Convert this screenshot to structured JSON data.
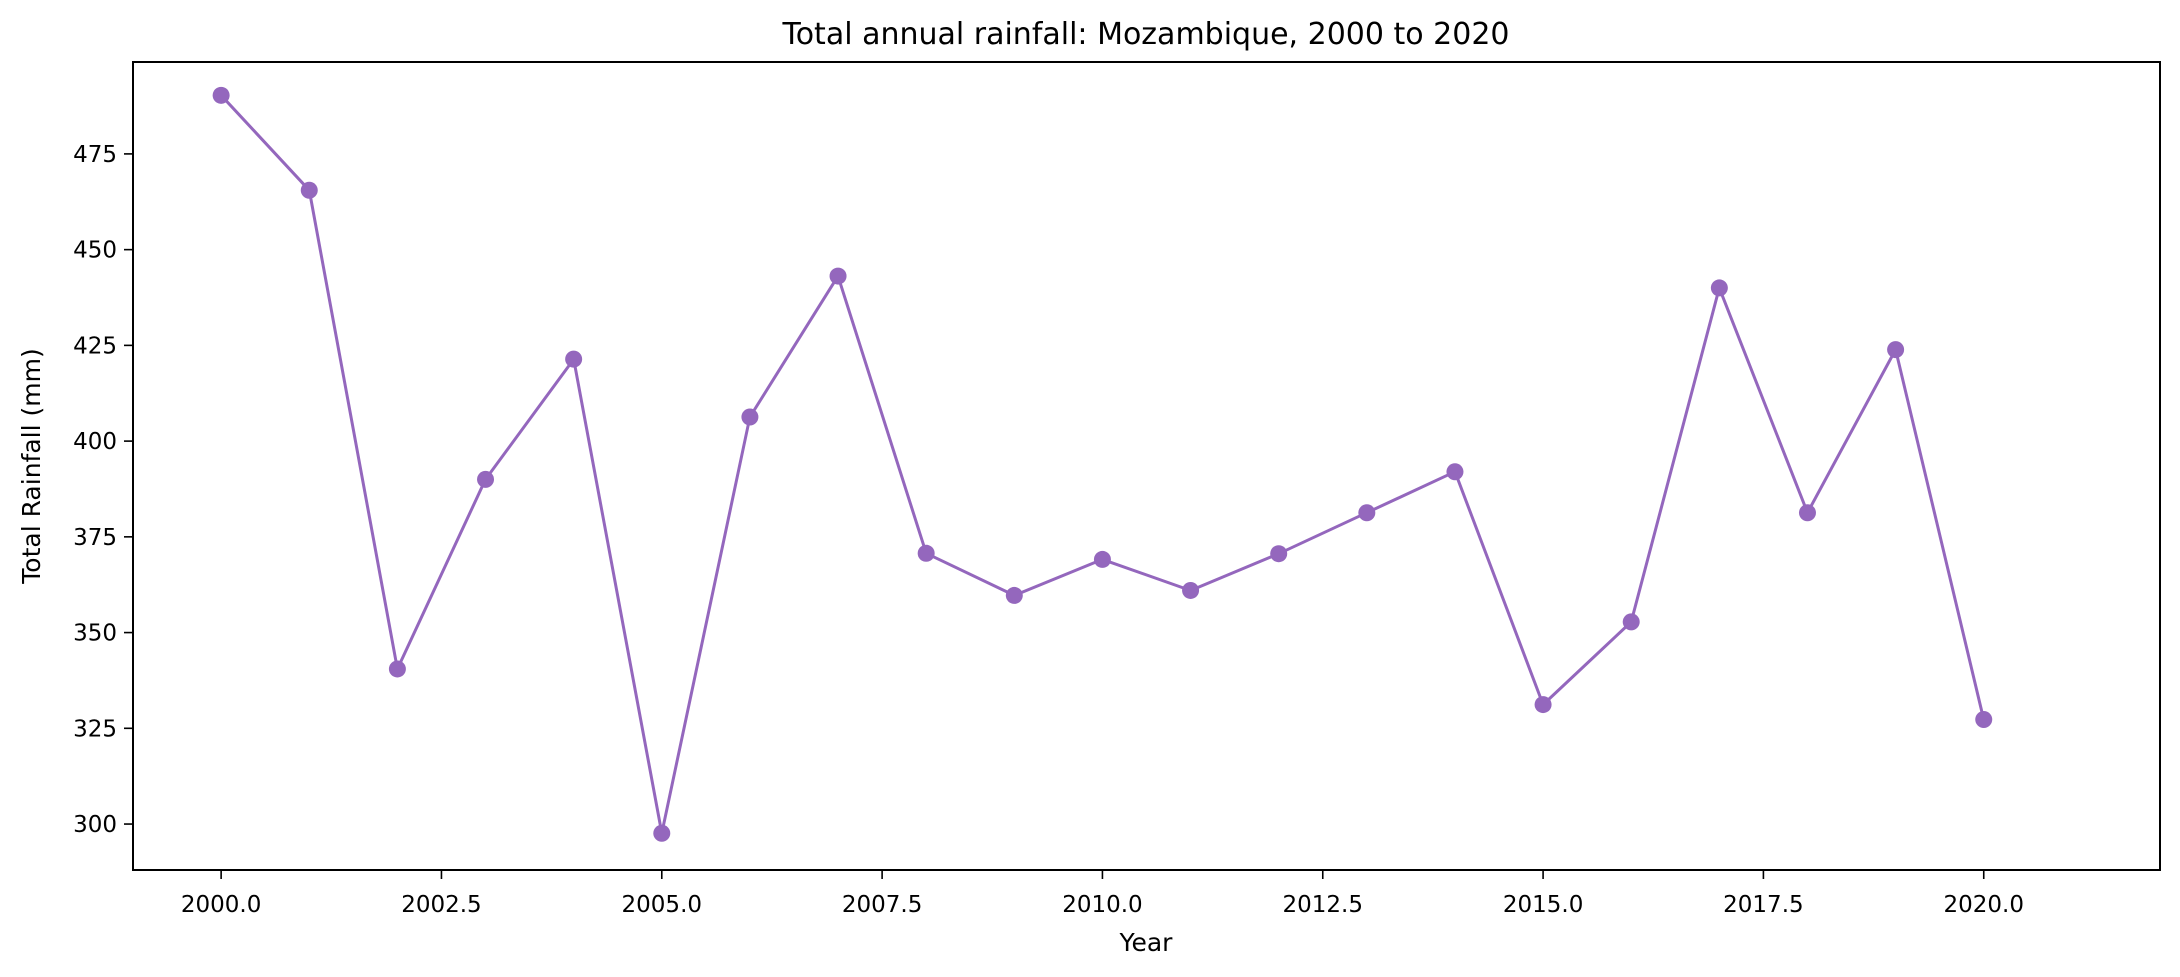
{
  "chart_data": {
    "type": "line",
    "title": "Total annual rainfall: Mozambique, 2000 to 2020",
    "xlabel": "Year",
    "ylabel": "Total Rainfall (mm)",
    "xlim": [
      1999.0,
      2022.0
    ],
    "ylim": [
      288.0,
      499.0
    ],
    "xticks": [
      2000.0,
      2002.5,
      2005.0,
      2007.5,
      2010.0,
      2012.5,
      2015.0,
      2017.5,
      2020.0
    ],
    "xtick_labels": [
      "2000.0",
      "2002.5",
      "2005.0",
      "2007.5",
      "2010.0",
      "2012.5",
      "2015.0",
      "2017.5",
      "2020.0"
    ],
    "yticks": [
      300,
      325,
      350,
      375,
      400,
      425,
      450,
      475
    ],
    "ytick_labels": [
      "300",
      "325",
      "350",
      "375",
      "400",
      "425",
      "450",
      "475"
    ],
    "grid": false,
    "series": [
      {
        "color": "#9467bd",
        "marker": "circle",
        "x": [
          2000,
          2001,
          2002,
          2003,
          2004,
          2005,
          2006,
          2007,
          2008,
          2009,
          2010,
          2011,
          2012,
          2013,
          2014,
          2015,
          2016,
          2017,
          2018,
          2019,
          2020
        ],
        "values": [
          490.3,
          465.5,
          340.5,
          390.0,
          421.4,
          297.6,
          406.3,
          443.1,
          370.7,
          359.7,
          369.1,
          361.0,
          370.6,
          381.3,
          392.0,
          331.2,
          352.8,
          440.0,
          381.3,
          423.9,
          327.3
        ]
      }
    ]
  }
}
